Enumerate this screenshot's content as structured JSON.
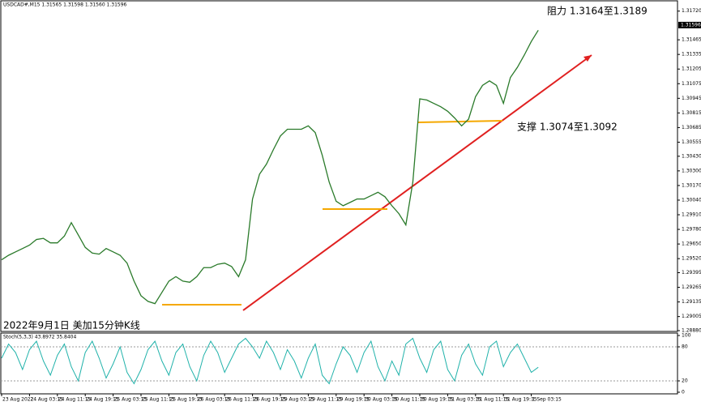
{
  "chart_data": [
    {
      "type": "line",
      "header": "USDCAD#,M15  1.31565 1.31598 1.31560 1.31596",
      "caption": "2022年9月1日 美加15分钟K线",
      "annotations": [
        "阻力 1.3164至1.3189",
        "支撑 1.3074至1.3092"
      ],
      "last_price": {
        "value": 1.31596,
        "label": "1.31596"
      },
      "categories": [
        "23 Aug 2022",
        null,
        null,
        null,
        "24 Aug 03:15",
        null,
        null,
        null,
        "24 Aug 11:15",
        null,
        null,
        null,
        "24 Aug 19:15",
        null,
        null,
        null,
        "25 Aug 03:15",
        null,
        null,
        null,
        "25 Aug 11:15",
        null,
        null,
        null,
        "25 Aug 19:15",
        null,
        null,
        null,
        "26 Aug 03:15",
        null,
        null,
        null,
        "26 Aug 11:15",
        null,
        null,
        null,
        "26 Aug 19:15",
        null,
        null,
        null,
        "29 Aug 03:15",
        null,
        null,
        null,
        "29 Aug 11:15",
        null,
        null,
        null,
        "29 Aug 19:15",
        null,
        null,
        null,
        "30 Aug 03:15",
        null,
        null,
        null,
        "30 Aug 11:15",
        null,
        null,
        null,
        "30 Aug 19:15",
        null,
        null,
        null,
        "31 Aug 03:15",
        null,
        null,
        null,
        "31 Aug 11:15",
        null,
        null,
        null,
        "31 Aug 19:15",
        null,
        null,
        null,
        "1 Sep 03:15",
        null
      ],
      "series": [
        {
          "color": "#2a7a2a",
          "values": [
            1.2951,
            1.2955,
            1.2958,
            1.2961,
            1.2964,
            1.2969,
            1.297,
            1.2966,
            1.2966,
            1.2972,
            1.2984,
            1.2973,
            1.2962,
            1.2957,
            1.2956,
            1.2961,
            1.2958,
            1.2955,
            1.2948,
            1.2932,
            1.2919,
            1.2914,
            1.2912,
            1.2922,
            1.2932,
            1.2936,
            1.2932,
            1.2931,
            1.2936,
            1.2944,
            1.2944,
            1.2947,
            1.2948,
            1.2945,
            1.2936,
            1.2951,
            1.3005,
            1.3027,
            1.3036,
            1.3049,
            1.3061,
            1.3067,
            1.3067,
            1.3067,
            1.307,
            1.3064,
            1.3044,
            1.302,
            1.3003,
            1.2999,
            1.3002,
            1.3005,
            1.3005,
            1.3008,
            1.3011,
            1.3007,
            1.2999,
            1.2992,
            1.2982,
            1.302,
            1.3094,
            1.3093,
            1.309,
            1.3087,
            1.3083,
            1.3077,
            1.307,
            1.3076,
            1.3096,
            1.3106,
            1.311,
            1.3106,
            1.309,
            1.3113,
            1.3122,
            1.3133,
            1.3145,
            1.3155
          ]
        }
      ],
      "ylim": [
        1.2888,
        1.3179
      ],
      "yticks": [
        {
          "value": 1.3172,
          "label": "1.31720"
        },
        {
          "value": 1.31465,
          "label": "1.31465"
        },
        {
          "value": 1.31335,
          "label": "1.31335"
        },
        {
          "value": 1.31205,
          "label": "1.31205"
        },
        {
          "value": 1.31075,
          "label": "1.31075"
        },
        {
          "value": 1.30945,
          "label": "1.30945"
        },
        {
          "value": 1.30815,
          "label": "1.30815"
        },
        {
          "value": 1.30685,
          "label": "1.30685"
        },
        {
          "value": 1.30555,
          "label": "1.30555"
        },
        {
          "value": 1.3043,
          "label": "1.30430"
        },
        {
          "value": 1.303,
          "label": "1.30300"
        },
        {
          "value": 1.3017,
          "label": "1.30170"
        },
        {
          "value": 1.3004,
          "label": "1.30040"
        },
        {
          "value": 1.2991,
          "label": "1.29910"
        },
        {
          "value": 1.2978,
          "label": "1.29780"
        },
        {
          "value": 1.2965,
          "label": "1.29650"
        },
        {
          "value": 1.2952,
          "label": "1.29520"
        },
        {
          "value": 1.29395,
          "label": "1.29395"
        },
        {
          "value": 1.29265,
          "label": "1.29265"
        },
        {
          "value": 1.29135,
          "label": "1.29135"
        },
        {
          "value": 1.29005,
          "label": "1.29005"
        },
        {
          "value": 1.2888,
          "label": "1.28880"
        }
      ]
    },
    {
      "type": "line",
      "label": "Stoch(5,3,3) 43.8972 35.8404",
      "ylim": [
        0,
        100
      ],
      "yticks": [
        100,
        80,
        20,
        0
      ],
      "series": [
        {
          "color": "#20b2aa",
          "values": [
            60,
            85,
            70,
            40,
            75,
            90,
            55,
            30,
            65,
            85,
            45,
            20,
            70,
            90,
            60,
            25,
            50,
            80,
            35,
            15,
            40,
            75,
            90,
            55,
            30,
            70,
            85,
            45,
            20,
            65,
            90,
            70,
            35,
            60,
            85,
            95,
            80,
            60,
            90,
            70,
            40,
            75,
            55,
            25,
            60,
            85,
            30,
            15,
            50,
            80,
            65,
            35,
            70,
            90,
            45,
            20,
            55,
            30,
            85,
            95,
            60,
            35,
            75,
            90,
            40,
            20,
            65,
            85,
            50,
            30,
            80,
            90,
            45,
            70,
            85,
            60,
            35,
            44
          ]
        }
      ]
    }
  ]
}
